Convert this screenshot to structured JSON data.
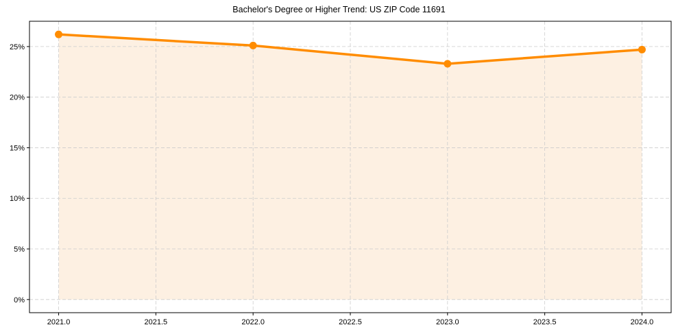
{
  "chart_data": {
    "type": "line",
    "title": "Bachelor's Degree or Higher Trend: US ZIP Code 11691",
    "xlabel": "",
    "ylabel": "",
    "x": [
      2021,
      2022,
      2023,
      2024
    ],
    "series": [
      {
        "name": "Bachelor's Degree or Higher",
        "values": [
          26.2,
          25.1,
          23.3,
          24.7
        ],
        "color": "#ff8c00",
        "fill": true,
        "fill_color": "#fdf0e2"
      }
    ],
    "xticks": [
      "2021.0",
      "2021.5",
      "2022.0",
      "2022.5",
      "2023.0",
      "2023.5",
      "2024.0"
    ],
    "yticks": [
      "0%",
      "5%",
      "10%",
      "15%",
      "20%",
      "25%"
    ],
    "xlim": [
      2020.85,
      2024.15
    ],
    "ylim": [
      -1.3,
      27.5
    ],
    "grid": true,
    "legend": null
  }
}
